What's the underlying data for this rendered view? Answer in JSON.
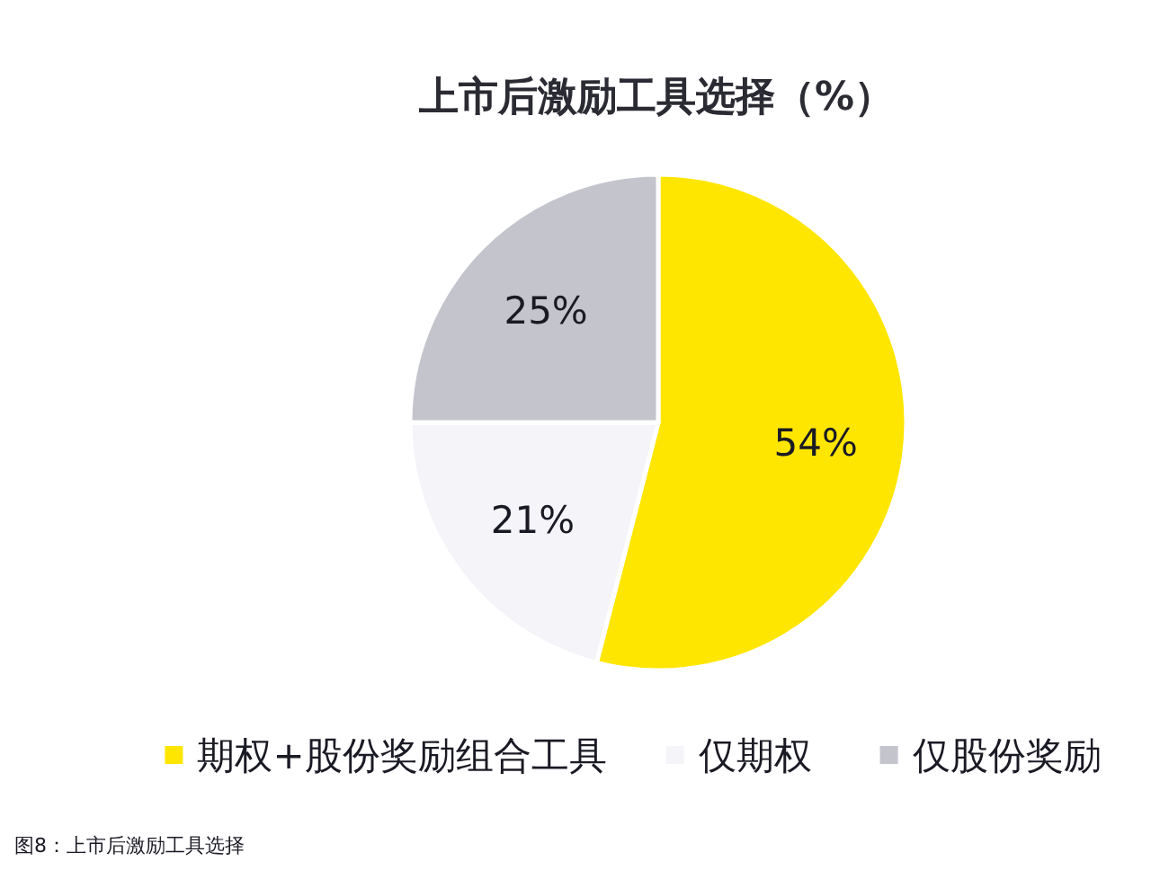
{
  "chart_data": {
    "type": "pie",
    "title": "上市后激励工具选择（%）",
    "categories": [
      "期权+股份奖励组合工具",
      "仅期权",
      "仅股份奖励"
    ],
    "values": [
      54,
      21,
      25
    ],
    "colors": [
      "#ffe600",
      "#f4f4f9",
      "#c4c4cd"
    ],
    "value_labels": [
      "54%",
      "21%",
      "25%"
    ],
    "legend": "bottom",
    "annotations": [
      "图8：上市后激励工具选择"
    ]
  }
}
